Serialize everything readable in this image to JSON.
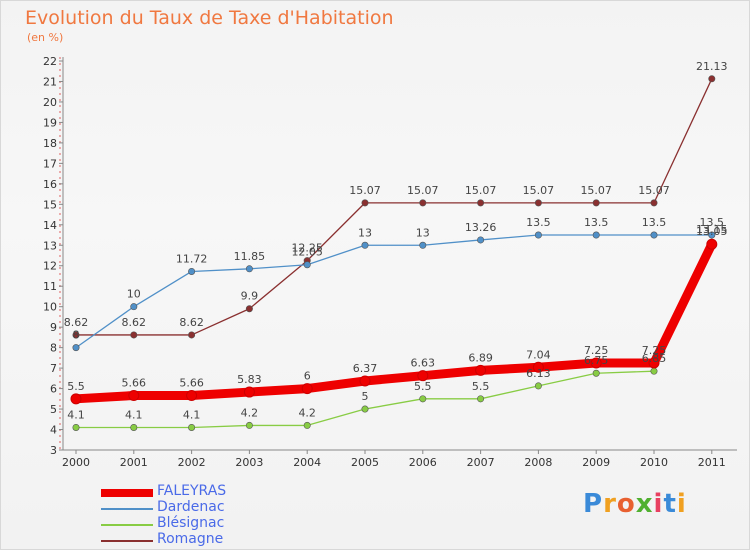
{
  "title": "Evolution du Taux de Taxe d'Habitation",
  "subtitle": "(en %)",
  "logo": {
    "text": "Proxiti",
    "colors": [
      "#3a8ad8",
      "#f0a020",
      "#e86030",
      "#50b030",
      "#e84060",
      "#3a8ad8",
      "#f0a020"
    ]
  },
  "chart_data": {
    "type": "line",
    "title": "Evolution du Taux de Taxe d'Habitation",
    "ylabel": "(en %)",
    "xlabel": "",
    "ylim": [
      3,
      22
    ],
    "yticks": [
      3,
      4,
      5,
      6,
      7,
      8,
      9,
      10,
      11,
      12,
      13,
      14,
      15,
      16,
      17,
      18,
      19,
      20,
      21,
      22
    ],
    "x": [
      "2000",
      "2001",
      "2002",
      "2003",
      "2004",
      "2005",
      "2006",
      "2007",
      "2008",
      "2009",
      "2010",
      "2011"
    ],
    "grid": false,
    "legend": "bottom-left",
    "series": [
      {
        "name": "FALEYRAS",
        "color": "#ee0000",
        "highlight": true,
        "values": [
          5.5,
          5.66,
          5.66,
          5.83,
          6,
          6.37,
          6.63,
          6.89,
          7.04,
          7.25,
          7.25,
          13.05
        ],
        "labels": [
          "5.5",
          "5.66",
          "5.66",
          "5.83",
          "6",
          "6.37",
          "6.63",
          "6.89",
          "7.04",
          "7.25",
          "7.25",
          "13.05"
        ]
      },
      {
        "name": "Dardenac",
        "color": "#5090c8",
        "values": [
          8,
          10,
          11.72,
          11.85,
          12.05,
          13,
          13,
          13.26,
          13.5,
          13.5,
          13.5,
          13.5
        ],
        "labels": [
          "8",
          "10",
          "11.72",
          "11.85",
          "12.05",
          "13",
          "13",
          "13.26",
          "13.5",
          "13.5",
          "13.5",
          "13.5"
        ]
      },
      {
        "name": "Blésignac",
        "color": "#88cc44",
        "values": [
          4.1,
          4.1,
          4.1,
          4.2,
          4.2,
          5,
          5.5,
          5.5,
          6.13,
          6.75,
          6.85,
          13.15
        ],
        "labels": [
          "4.1",
          "4.1",
          "4.1",
          "4.2",
          "4.2",
          "5",
          "5.5",
          "5.5",
          "6.13",
          "6.75",
          "6.85",
          "13.15"
        ]
      },
      {
        "name": "Romagne",
        "color": "#8a3030",
        "values": [
          8.62,
          8.62,
          8.62,
          9.9,
          12.25,
          15.07,
          15.07,
          15.07,
          15.07,
          15.07,
          15.07,
          21.13
        ],
        "labels": [
          "8.62",
          "8.62",
          "8.62",
          "9.9",
          "12.25",
          "15.07",
          "15.07",
          "15.07",
          "15.07",
          "15.07",
          "15.07",
          "21.13"
        ]
      }
    ]
  }
}
